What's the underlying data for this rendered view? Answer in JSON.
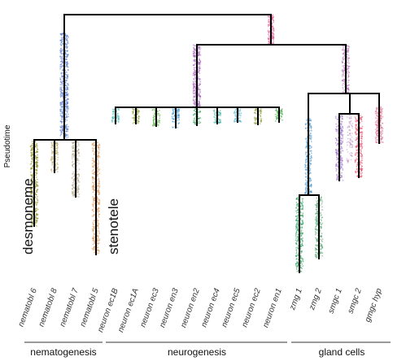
{
  "y_axis_label": "Pseudotime",
  "leaves": [
    {
      "id": "nematobl6",
      "label": "nematobl 6",
      "color": "#8a8a1e"
    },
    {
      "id": "nematobl8",
      "label": "nematobl 8",
      "color": "#b9a56a"
    },
    {
      "id": "nematobl7",
      "label": "nematobl 7",
      "color": "#b0a483"
    },
    {
      "id": "nematobl5",
      "label": "nematobl 5",
      "color": "#d8975a"
    },
    {
      "id": "neuron_ec1B",
      "label": "neuron ec1B",
      "color": "#3fb9b0"
    },
    {
      "id": "neuron_ec1A",
      "label": "neuron ec1A",
      "color": "#7f9b2e"
    },
    {
      "id": "neuron_ec3",
      "label": "neuron ec3",
      "color": "#56b43c"
    },
    {
      "id": "neuron_en3",
      "label": "neuron en3",
      "color": "#2f8fd0"
    },
    {
      "id": "neuron_en2",
      "label": "neuron en2",
      "color": "#2a9e50"
    },
    {
      "id": "neuron_ec4",
      "label": "neuron ec4",
      "color": "#2aa79a"
    },
    {
      "id": "neuron_ec5",
      "label": "neuron ec5",
      "color": "#39a7c9"
    },
    {
      "id": "neuron_ec2",
      "label": "neuron ec2",
      "color": "#8aa13a"
    },
    {
      "id": "neuron_en1",
      "label": "neuron en1",
      "color": "#3aa640"
    },
    {
      "id": "zmg1",
      "label": "zmg 1",
      "color": "#27a35b"
    },
    {
      "id": "zmg2",
      "label": "zmg 2",
      "color": "#5aa874"
    },
    {
      "id": "smgc1",
      "label": "smgc 1",
      "color": "#9a6fc4"
    },
    {
      "id": "smgc2",
      "label": "smgc 2",
      "color": "#e2566e"
    },
    {
      "id": "gmgc_hyp",
      "label": "gmgc hyp",
      "color": "#e06a8c"
    }
  ],
  "internal_colors": {
    "nemato_stem": "#5b7ccc",
    "neuro_stem": "#a464b8",
    "gland_stem": "#b070b4",
    "root": "#e3609a",
    "zmg_stem": "#4a94c8",
    "smgc_stem": "#b07ab8"
  },
  "groups": [
    {
      "label": "nematogenesis"
    },
    {
      "label": "neurogenesis"
    },
    {
      "label": "gland cells"
    }
  ],
  "annotations": {
    "desmoneme": "desmoneme",
    "stenotele": "stenotele"
  }
}
